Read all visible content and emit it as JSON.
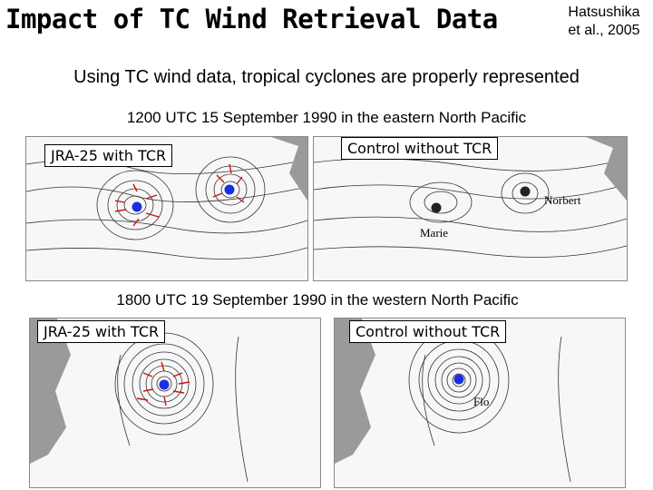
{
  "slide": {
    "title": "Impact of TC Wind Retrieval Data",
    "citation_line1": "Hatsushika",
    "citation_line2": "et al., 2005",
    "subtitle": "Using TC wind data, tropical cyclones are properly represented",
    "caption_top": "1200 UTC 15 September 1990 in the eastern North Pacific",
    "caption_bottom": "1800 UTC 19 September 1990 in the western North Pacific"
  },
  "panels": {
    "top_left_label": "JRA-25 with TCR",
    "top_right_label": "Control without TCR",
    "bottom_left_label": "JRA-25 with TCR",
    "bottom_right_label": "Control without TCR"
  },
  "storms": {
    "norbert": "Norbert",
    "marie": "Marie",
    "flo": "Flo"
  },
  "colors": {
    "contour": "#333333",
    "land": "#9a9a9a",
    "wind_obs": "#d01010",
    "tc_marker_jra": "#1a2fe0",
    "tc_marker_ctrl": "#222222"
  }
}
